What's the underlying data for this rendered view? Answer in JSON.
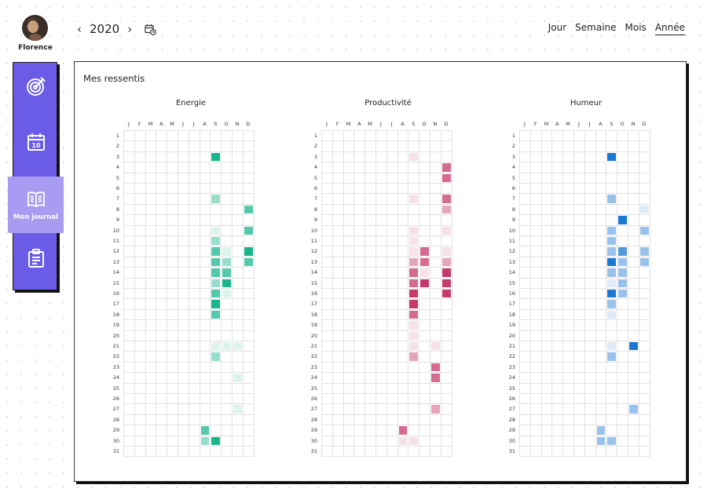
{
  "user": {
    "name": "Florence"
  },
  "sidebar": {
    "items": [
      {
        "icon": "target-icon",
        "label": ""
      },
      {
        "icon": "calendar-10-icon",
        "label": ""
      },
      {
        "icon": "book-icon",
        "label": "Mon journal",
        "active": true
      },
      {
        "icon": "clipboard-icon",
        "label": ""
      }
    ]
  },
  "header": {
    "prev_icon": "chevron-left-icon",
    "year": "2020",
    "next_icon": "chevron-right-icon",
    "calendar_icon": "calendar-clock-icon",
    "tabs": [
      {
        "label": "Jour"
      },
      {
        "label": "Semaine"
      },
      {
        "label": "Mois"
      },
      {
        "label": "Année",
        "active": true
      }
    ]
  },
  "card": {
    "title": "Mes ressentis"
  },
  "months": [
    "J",
    "F",
    "M",
    "A",
    "M",
    "J",
    "J",
    "A",
    "S",
    "O",
    "N",
    "D"
  ],
  "days": [
    "1",
    "2",
    "3",
    "4",
    "5",
    "6",
    "7",
    "8",
    "9",
    "10",
    "11",
    "12",
    "13",
    "14",
    "15",
    "16",
    "17",
    "18",
    "19",
    "20",
    "21",
    "22",
    "23",
    "24",
    "25",
    "26",
    "27",
    "28",
    "29",
    "30",
    "31"
  ],
  "chart_data": [
    {
      "type": "heatmap",
      "title": "Energie",
      "color": "#19b68e",
      "values": [
        [
          3,
          8,
          4
        ],
        [
          7,
          8,
          2
        ],
        [
          8,
          11,
          3
        ],
        [
          10,
          8,
          1
        ],
        [
          10,
          11,
          3
        ],
        [
          11,
          8,
          2
        ],
        [
          12,
          8,
          3
        ],
        [
          12,
          9,
          1
        ],
        [
          12,
          11,
          4
        ],
        [
          13,
          8,
          3
        ],
        [
          13,
          9,
          2
        ],
        [
          13,
          11,
          3
        ],
        [
          14,
          8,
          3
        ],
        [
          14,
          9,
          3
        ],
        [
          15,
          8,
          2
        ],
        [
          15,
          9,
          4
        ],
        [
          16,
          8,
          3
        ],
        [
          16,
          9,
          1
        ],
        [
          17,
          8,
          4
        ],
        [
          18,
          8,
          3
        ],
        [
          21,
          8,
          1
        ],
        [
          21,
          9,
          1
        ],
        [
          21,
          10,
          1
        ],
        [
          22,
          8,
          2
        ],
        [
          24,
          10,
          1
        ],
        [
          27,
          10,
          1
        ],
        [
          29,
          7,
          3
        ],
        [
          30,
          7,
          2
        ],
        [
          30,
          8,
          4
        ]
      ]
    },
    {
      "type": "heatmap",
      "title": "Productivité",
      "color": "#c5396b",
      "values": [
        [
          3,
          8,
          1
        ],
        [
          4,
          11,
          3
        ],
        [
          5,
          11,
          3
        ],
        [
          7,
          8,
          1
        ],
        [
          7,
          11,
          3
        ],
        [
          8,
          11,
          2
        ],
        [
          10,
          8,
          1
        ],
        [
          10,
          11,
          1
        ],
        [
          11,
          8,
          1
        ],
        [
          12,
          8,
          1
        ],
        [
          12,
          9,
          3
        ],
        [
          12,
          11,
          1
        ],
        [
          13,
          8,
          2
        ],
        [
          13,
          9,
          3
        ],
        [
          13,
          11,
          2
        ],
        [
          14,
          8,
          3
        ],
        [
          14,
          9,
          1
        ],
        [
          14,
          11,
          4
        ],
        [
          15,
          8,
          3
        ],
        [
          15,
          9,
          4
        ],
        [
          15,
          11,
          4
        ],
        [
          16,
          8,
          4
        ],
        [
          16,
          11,
          4
        ],
        [
          17,
          8,
          4
        ],
        [
          18,
          8,
          3
        ],
        [
          19,
          8,
          1
        ],
        [
          20,
          8,
          1
        ],
        [
          21,
          8,
          1
        ],
        [
          21,
          10,
          1
        ],
        [
          22,
          8,
          2
        ],
        [
          23,
          10,
          3
        ],
        [
          24,
          10,
          3
        ],
        [
          27,
          10,
          2
        ],
        [
          29,
          7,
          3
        ],
        [
          30,
          7,
          1
        ],
        [
          30,
          8,
          1
        ]
      ]
    },
    {
      "type": "heatmap",
      "title": "Humeur",
      "color": "#1a78d2",
      "values": [
        [
          3,
          8,
          4
        ],
        [
          7,
          8,
          2
        ],
        [
          8,
          11,
          1
        ],
        [
          9,
          9,
          4
        ],
        [
          10,
          8,
          2
        ],
        [
          10,
          11,
          2
        ],
        [
          11,
          8,
          2
        ],
        [
          12,
          8,
          2
        ],
        [
          12,
          9,
          3
        ],
        [
          12,
          11,
          2
        ],
        [
          13,
          8,
          4
        ],
        [
          13,
          9,
          2
        ],
        [
          13,
          11,
          2
        ],
        [
          14,
          8,
          2
        ],
        [
          14,
          9,
          2
        ],
        [
          15,
          8,
          1
        ],
        [
          15,
          9,
          2
        ],
        [
          16,
          8,
          4
        ],
        [
          16,
          9,
          2
        ],
        [
          17,
          8,
          2
        ],
        [
          18,
          8,
          1
        ],
        [
          21,
          8,
          1
        ],
        [
          21,
          10,
          4
        ],
        [
          22,
          8,
          2
        ],
        [
          27,
          10,
          2
        ],
        [
          29,
          7,
          2
        ],
        [
          30,
          7,
          2
        ],
        [
          30,
          8,
          2
        ]
      ]
    }
  ]
}
